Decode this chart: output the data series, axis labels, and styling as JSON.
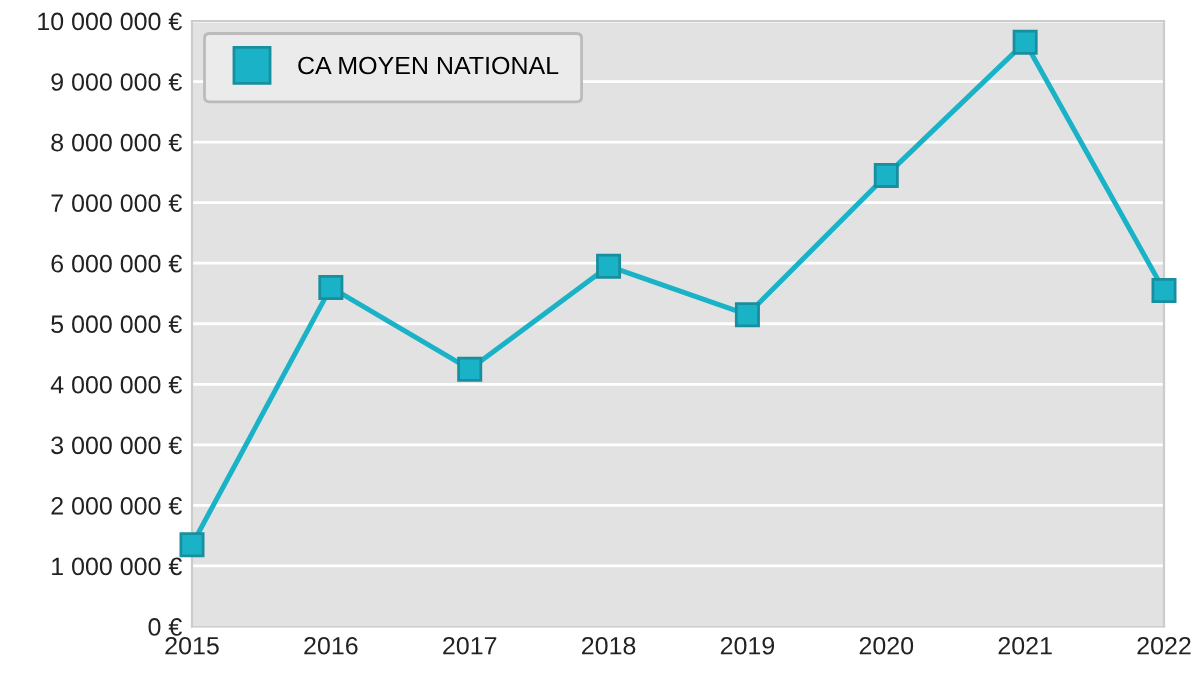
{
  "chart_data": {
    "type": "line",
    "x": [
      2015,
      2016,
      2017,
      2018,
      2019,
      2020,
      2021,
      2022
    ],
    "series": [
      {
        "name": "CA MOYEN NATIONAL",
        "color": "#1ab2c6",
        "values": [
          1350000,
          5600000,
          4250000,
          5950000,
          5150000,
          7450000,
          9650000,
          5550000
        ]
      }
    ],
    "xlim": [
      2015,
      2022
    ],
    "xticks": [
      2015,
      2016,
      2017,
      2018,
      2019,
      2020,
      2021,
      2022
    ],
    "ylim": [
      0,
      10000000
    ],
    "yticks": [
      {
        "value": 0,
        "label": "0 €"
      },
      {
        "value": 1000000,
        "label": "1 000 000 €"
      },
      {
        "value": 2000000,
        "label": "2 000 000 €"
      },
      {
        "value": 3000000,
        "label": "3 000 000 €"
      },
      {
        "value": 4000000,
        "label": "4 000 000 €"
      },
      {
        "value": 5000000,
        "label": "5 000 000 €"
      },
      {
        "value": 6000000,
        "label": "6 000 000 €"
      },
      {
        "value": 7000000,
        "label": "7 000 000 €"
      },
      {
        "value": 8000000,
        "label": "8 000 000 €"
      },
      {
        "value": 9000000,
        "label": "9 000 000 €"
      },
      {
        "value": 10000000,
        "label": "10 000 000 €"
      }
    ],
    "grid": "y",
    "legend": "top left",
    "marker": "square",
    "line_style": "solid"
  }
}
